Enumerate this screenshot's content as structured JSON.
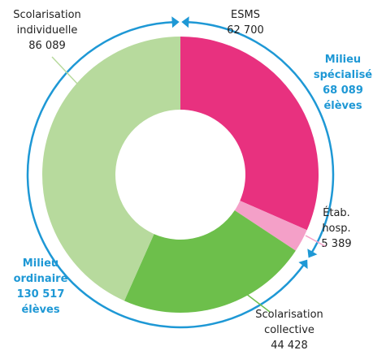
{
  "chart_data": {
    "type": "donut",
    "categories": [
      "ESMS",
      "Étab. hosp.",
      "Scolarisation collective",
      "Scolarisation individuelle"
    ],
    "values": [
      62700,
      5389,
      44428,
      86089
    ],
    "value_labels": [
      "62 700",
      "5 389",
      "44 428",
      "86 089"
    ],
    "colors": [
      "#e8317f",
      "#f4a0c8",
      "#6dbf4b",
      "#b7da9d"
    ],
    "groups": [
      {
        "name": "Milieu spécialisé",
        "value": 68089,
        "value_label": "68 089",
        "unit": "élèves"
      },
      {
        "name": "Milieu ordinaire",
        "value": 130517,
        "value_label": "130 517",
        "unit": "élèves"
      }
    ],
    "group_color": "#1e98d5"
  }
}
